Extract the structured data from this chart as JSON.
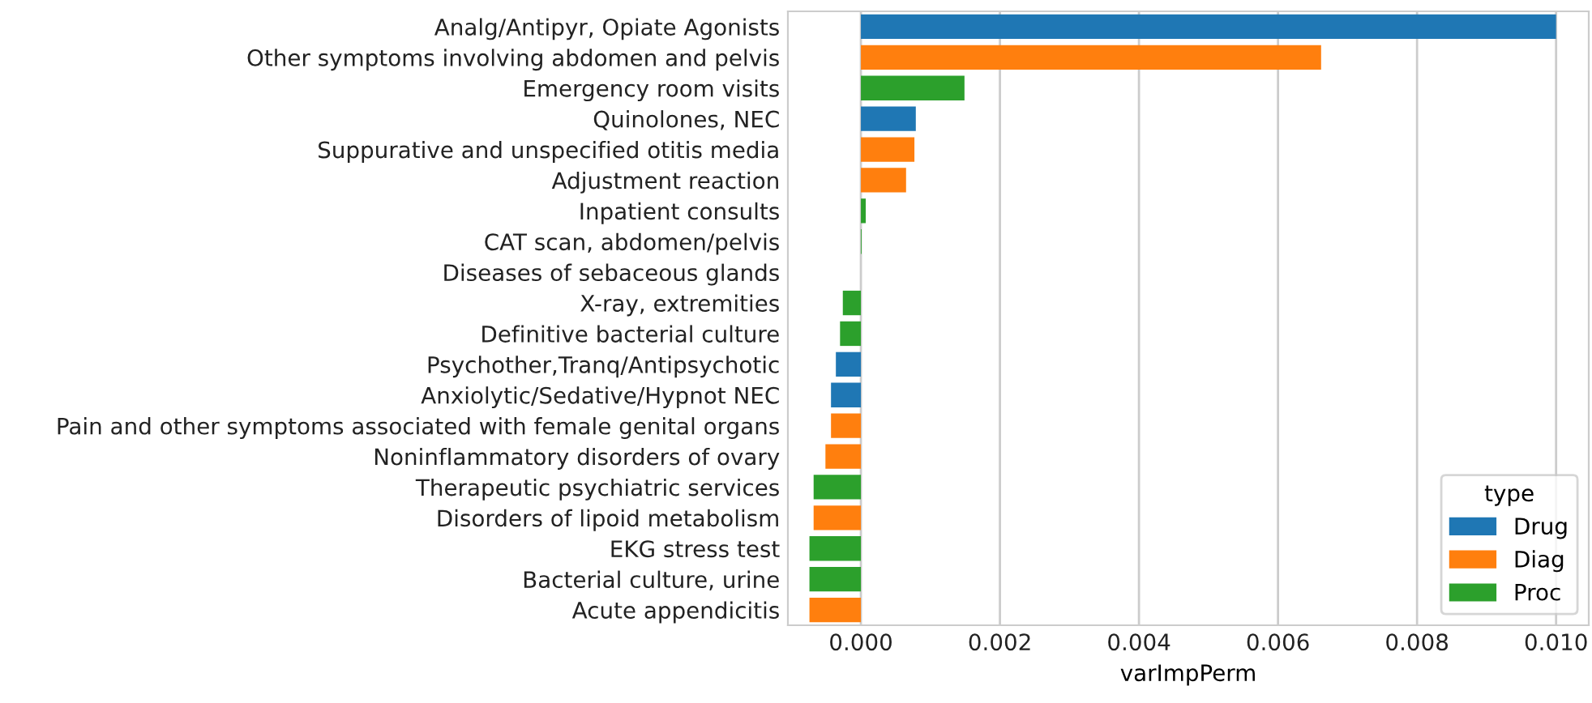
{
  "chart_data": {
    "type": "bar",
    "orientation": "horizontal",
    "xlabel": "varImpPerm",
    "legend_title": "type",
    "legend": "bottom right",
    "grid": "x",
    "categories": [
      "Analg/Antipyr, Opiate Agonists",
      "Other symptoms involving abdomen and pelvis",
      "Emergency room visits",
      "Quinolones, NEC",
      "Suppurative and unspecified otitis media",
      "Adjustment reaction",
      "Inpatient consults",
      "CAT scan, abdomen/pelvis",
      "Diseases of sebaceous glands",
      "X-ray, extremities",
      "Definitive bacterial culture",
      "Psychother,Tranq/Antipsychotic",
      "Anxiolytic/Sedative/Hypnot NEC",
      "Pain and other symptoms associated with female genital organs",
      "Noninflammatory disorders of ovary",
      "Therapeutic psychiatric services",
      "Disorders of lipoid metabolism",
      "EKG stress test",
      "Bacterial culture, urine",
      "Acute appendicitis"
    ],
    "series": [
      {
        "name": "Drug",
        "color": "#1f77b4",
        "values": [
          0.01,
          null,
          null,
          0.00079,
          null,
          null,
          null,
          null,
          null,
          null,
          null,
          -0.00036,
          -0.00043,
          null,
          null,
          null,
          null,
          null,
          null,
          null
        ]
      },
      {
        "name": "Diag",
        "color": "#ff7f0e",
        "values": [
          null,
          0.00662,
          null,
          null,
          0.00077,
          0.00065,
          null,
          null,
          0.0,
          null,
          null,
          null,
          null,
          -0.00043,
          -0.00051,
          null,
          -0.00068,
          null,
          null,
          -0.00074
        ]
      },
      {
        "name": "Proc",
        "color": "#2ca02c",
        "values": [
          null,
          null,
          0.00149,
          null,
          null,
          null,
          7e-05,
          1e-05,
          null,
          -0.00026,
          -0.0003,
          null,
          null,
          null,
          null,
          -0.00068,
          null,
          -0.00074,
          -0.00074,
          null
        ]
      }
    ],
    "xlim": [
      -0.00105,
      0.01047
    ],
    "xticks": [
      {
        "value": 0,
        "label": "0.000"
      },
      {
        "value": 0.002,
        "label": "0.002"
      },
      {
        "value": 0.004,
        "label": "0.004"
      },
      {
        "value": 0.006,
        "label": "0.006"
      },
      {
        "value": 0.008,
        "label": "0.008"
      },
      {
        "value": 0.01,
        "label": "0.010"
      }
    ]
  }
}
